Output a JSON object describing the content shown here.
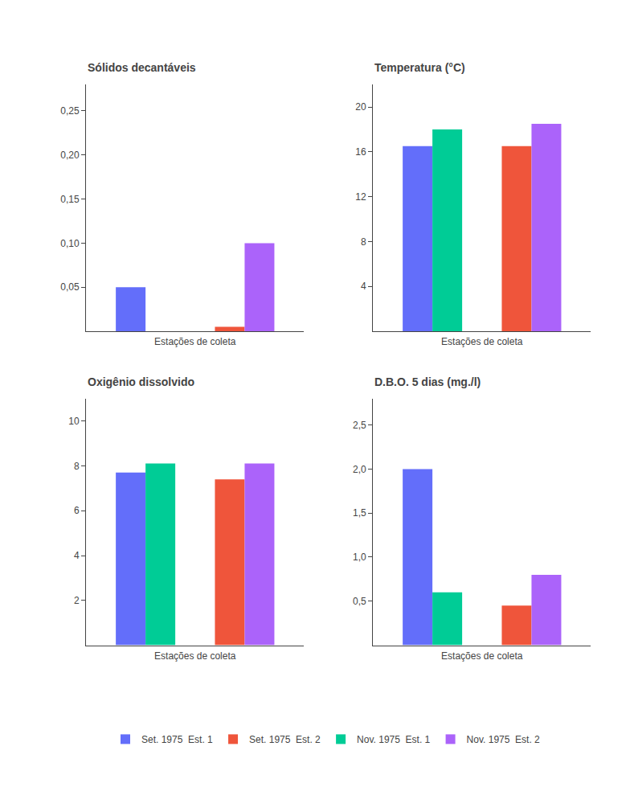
{
  "chart_data": [
    {
      "type": "bar",
      "title": "Sólidos decantáveis",
      "xlabel": "Estações de coleta",
      "categories": [
        null,
        null
      ],
      "series": [
        {
          "name": "Set. 1975  Est. 1",
          "color": "#636efa",
          "values": [
            0.05,
            null
          ]
        },
        {
          "name": "Set. 1975  Est. 2",
          "color": "#ef553b",
          "values": [
            null,
            0.005
          ]
        },
        {
          "name": "Nov. 1975  Est. 1",
          "color": "#00cc96",
          "values": [
            0.0,
            null
          ]
        },
        {
          "name": "Nov. 1975  Est. 2",
          "color": "#ab63fa",
          "values": [
            null,
            0.1
          ]
        }
      ],
      "ylim": [
        0,
        0.28
      ],
      "yticks": [
        {
          "value": 0.05,
          "label": "0,05"
        },
        {
          "value": 0.1,
          "label": "0,10"
        },
        {
          "value": 0.15,
          "label": "0,15"
        },
        {
          "value": 0.2,
          "label": "0,20"
        },
        {
          "value": 0.25,
          "label": "0,25"
        }
      ],
      "grid": false,
      "legend": "bottom",
      "tick_labels": "y"
    },
    {
      "type": "bar",
      "title": "Temperatura (°C)",
      "xlabel": "Estações de coleta",
      "categories": [
        null,
        null
      ],
      "series": [
        {
          "name": "Set. 1975  Est. 1",
          "color": "#636efa",
          "values": [
            16.5,
            null
          ]
        },
        {
          "name": "Set. 1975  Est. 2",
          "color": "#ef553b",
          "values": [
            null,
            16.5
          ]
        },
        {
          "name": "Nov. 1975  Est. 1",
          "color": "#00cc96",
          "values": [
            18.0,
            null
          ]
        },
        {
          "name": "Nov. 1975  Est. 2",
          "color": "#ab63fa",
          "values": [
            null,
            18.5
          ]
        }
      ],
      "ylim": [
        0,
        22
      ],
      "yticks": [
        4,
        8,
        12,
        16,
        20
      ],
      "grid": false,
      "legend": "bottom",
      "tick_labels": "y"
    },
    {
      "type": "bar",
      "title": "Oxigênio dissolvido",
      "xlabel": "Estações de coleta",
      "categories": [
        null,
        null
      ],
      "series": [
        {
          "name": "Set. 1975  Est. 1",
          "color": "#636efa",
          "values": [
            7.7,
            null
          ]
        },
        {
          "name": "Set. 1975  Est. 2",
          "color": "#ef553b",
          "values": [
            null,
            7.4
          ]
        },
        {
          "name": "Nov. 1975  Est. 1",
          "color": "#00cc96",
          "values": [
            8.1,
            null
          ]
        },
        {
          "name": "Nov. 1975  Est. 2",
          "color": "#ab63fa",
          "values": [
            null,
            8.1
          ]
        }
      ],
      "ylim": [
        0,
        11
      ],
      "yticks": [
        2,
        4,
        6,
        8,
        10
      ],
      "grid": false,
      "legend": "bottom",
      "tick_labels": "y"
    },
    {
      "type": "bar",
      "title": "D.B.O. 5 dias (mg./l)",
      "xlabel": "Estações de coleta",
      "categories": [
        null,
        null
      ],
      "series": [
        {
          "name": "Set. 1975  Est. 1",
          "color": "#636efa",
          "values": [
            2.0,
            null
          ]
        },
        {
          "name": "Set. 1975  Est. 2",
          "color": "#ef553b",
          "values": [
            null,
            0.45
          ]
        },
        {
          "name": "Nov. 1975  Est. 1",
          "color": "#00cc96",
          "values": [
            0.6,
            null
          ]
        },
        {
          "name": "Nov. 1975  Est. 2",
          "color": "#ab63fa",
          "values": [
            null,
            0.8
          ]
        }
      ],
      "ylim": [
        0,
        2.8
      ],
      "yticks": [
        {
          "value": 0.5,
          "label": "0,5"
        },
        {
          "value": 1.0,
          "label": "1,0"
        },
        {
          "value": 1.5,
          "label": "1,5"
        },
        {
          "value": 2.0,
          "label": "2,0"
        },
        {
          "value": 2.5,
          "label": "2,5"
        }
      ],
      "grid": false,
      "legend": "bottom",
      "tick_labels": "y"
    }
  ]
}
